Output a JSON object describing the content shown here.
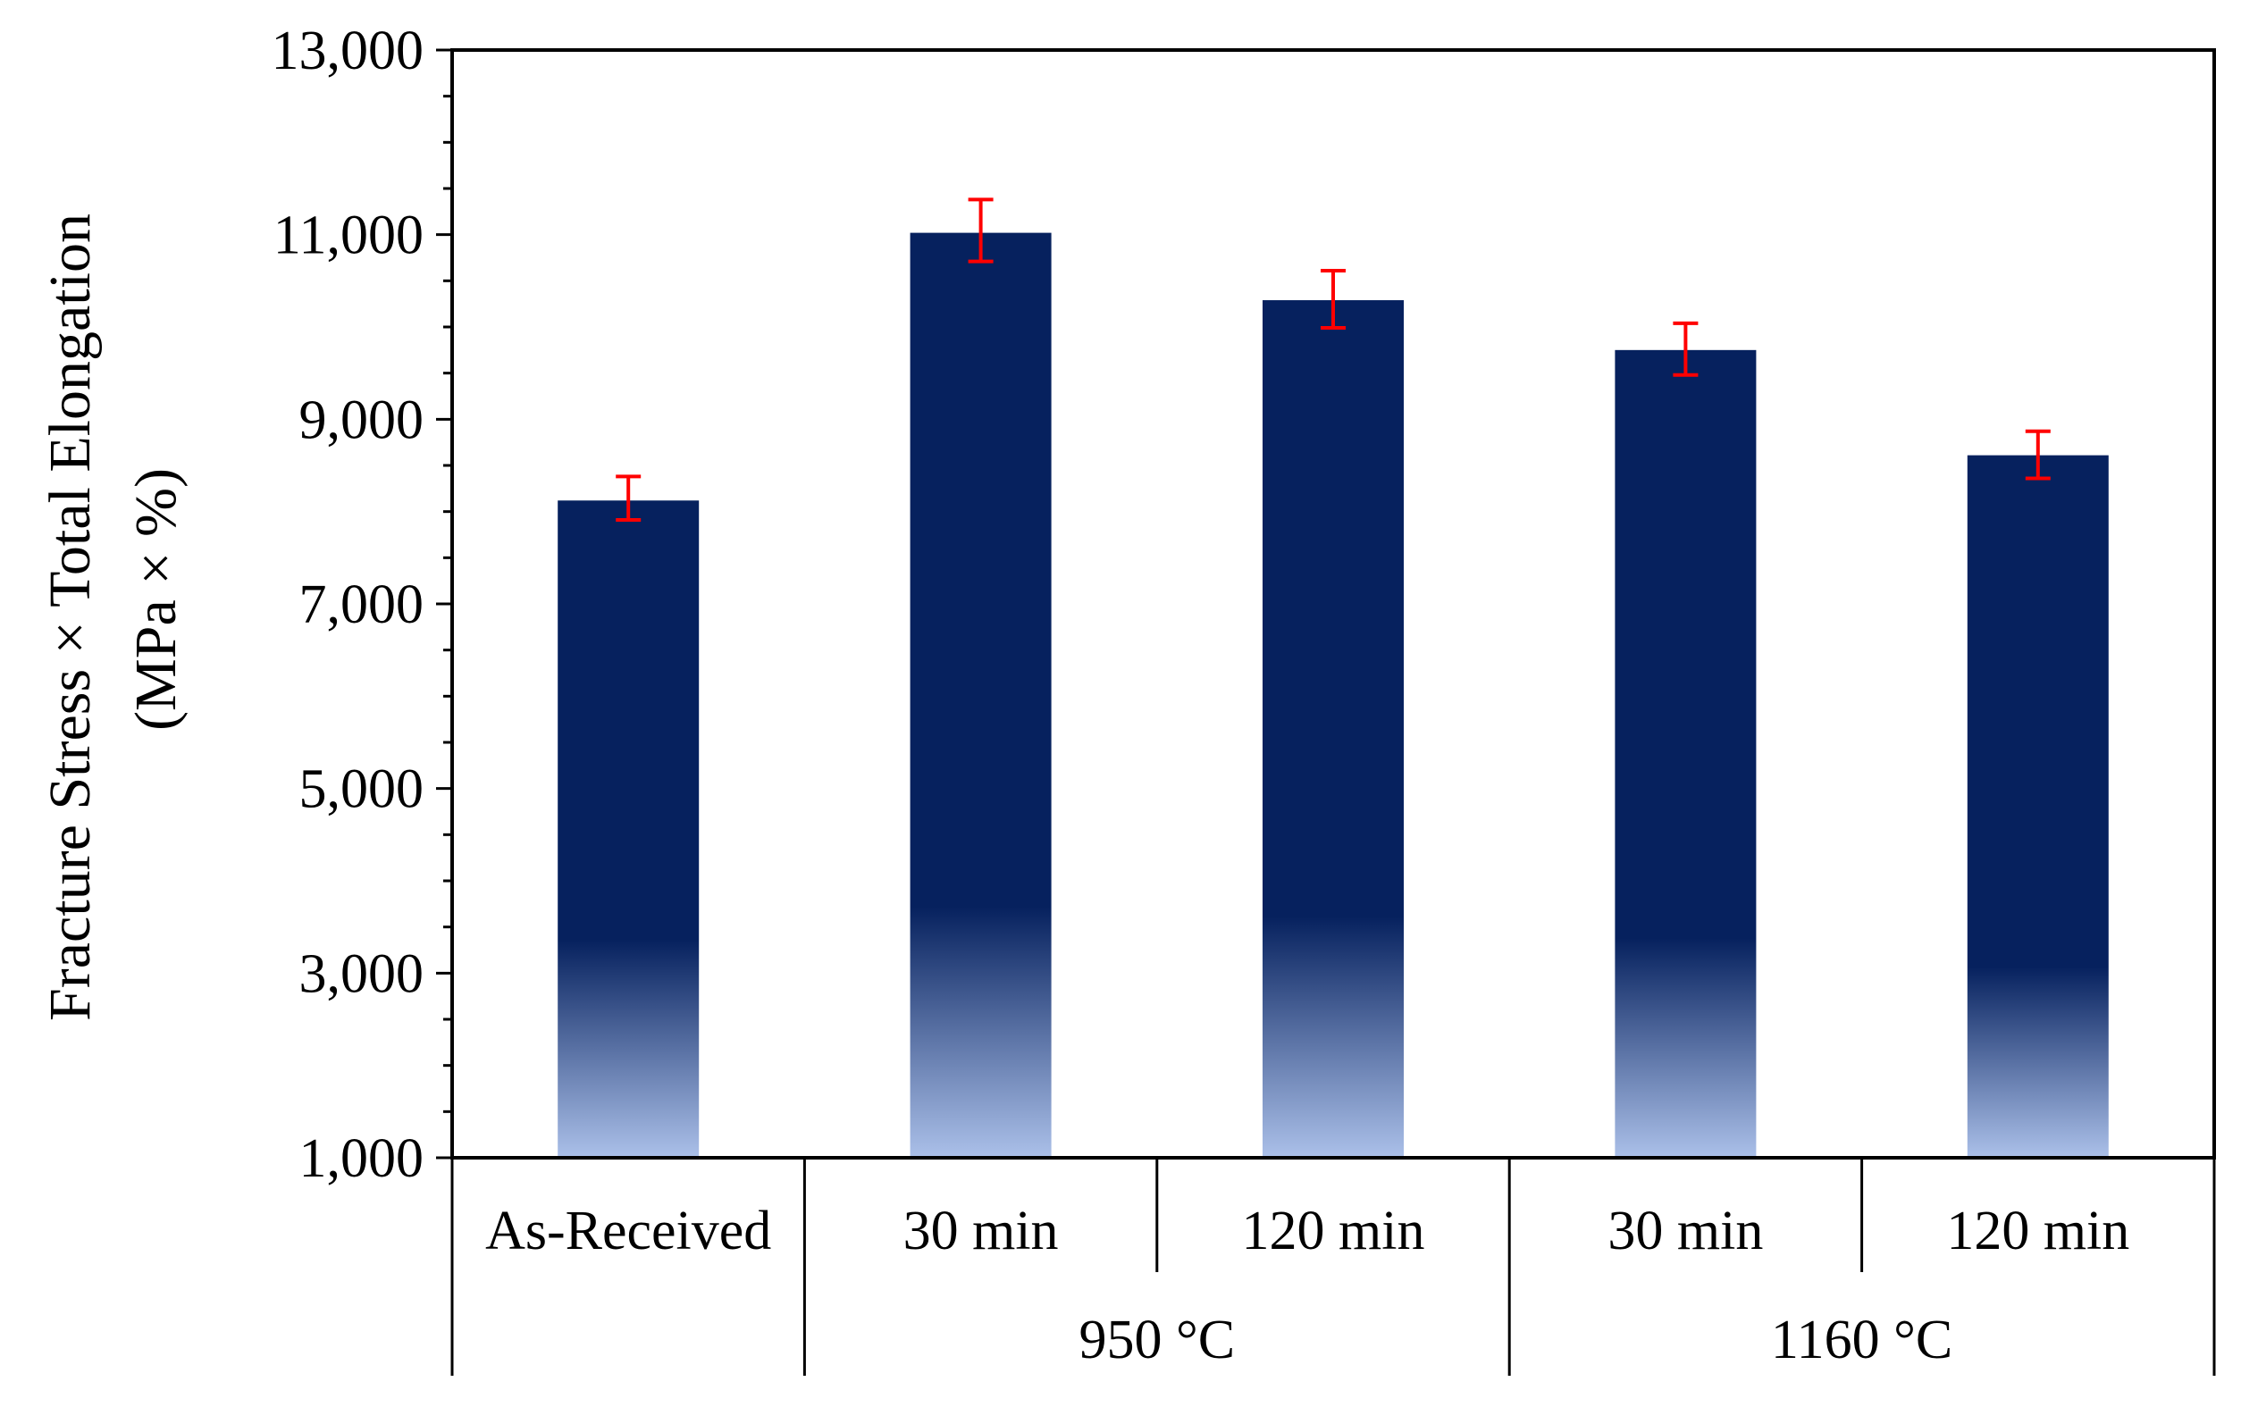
{
  "chart_data": {
    "type": "bar",
    "title": "",
    "xlabel": "",
    "ylabel_line1": "Fracture Stress × Total  Elongation",
    "ylabel_line2": "(MPa × %)",
    "ylim": [
      1000,
      13000
    ],
    "yticks": [
      1000,
      3000,
      5000,
      7000,
      9000,
      11000,
      13000
    ],
    "ytick_labels": [
      "1,000",
      "3,000",
      "5,000",
      "7,000",
      "9,000",
      "11,000",
      "13,000"
    ],
    "categories": [
      "As-Received",
      "30 min",
      "120 min",
      "30 min",
      "120 min"
    ],
    "groups": [
      {
        "label": "",
        "span": [
          0,
          0
        ]
      },
      {
        "label": "950 °C",
        "span": [
          1,
          2
        ]
      },
      {
        "label": "1160 °C",
        "span": [
          3,
          4
        ]
      }
    ],
    "values": [
      8120,
      11020,
      10290,
      9750,
      8610
    ],
    "error_low": [
      7910,
      10710,
      9990,
      9480,
      8360
    ],
    "error_high": [
      8380,
      11380,
      10610,
      10040,
      8870
    ],
    "grid": false,
    "legend": "none",
    "colors": {
      "bar_top": "#06215e",
      "bar_bottom": "#aabfe8",
      "error_bar": "#ff0000",
      "axis": "#000000"
    }
  }
}
